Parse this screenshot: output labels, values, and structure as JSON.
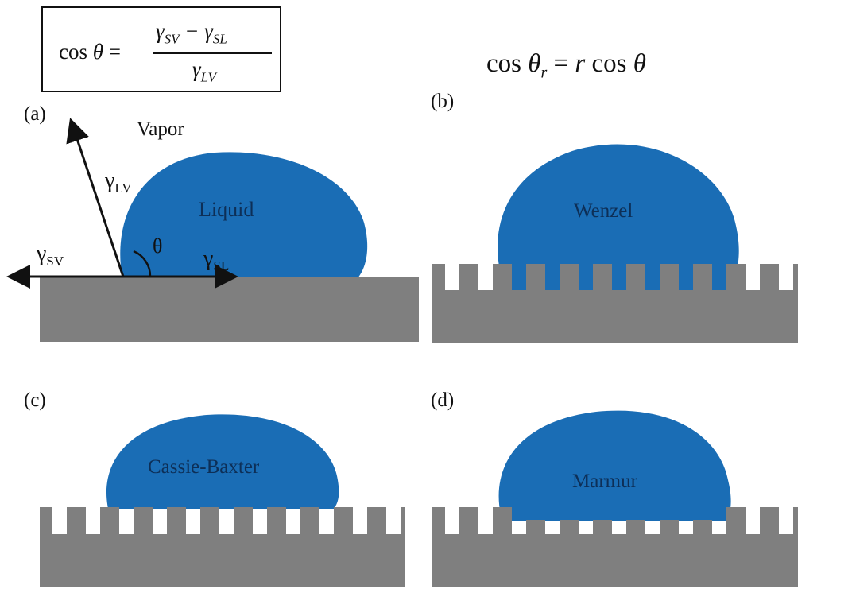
{
  "equations": {
    "young": {
      "lhs": "cos θ =",
      "numerator": "γSV − γSL",
      "denominator": "γLV"
    },
    "wenzel": {
      "text": "cos θr = r cos θ"
    }
  },
  "panels": {
    "a": {
      "label": "(a)",
      "vapor": "Vapor",
      "liquid": "Liquid",
      "gamma_lv": "γLV",
      "gamma_sv": "γSV",
      "gamma_sl": "γSL",
      "theta": "θ"
    },
    "b": {
      "label": "(b)",
      "drop": "Wenzel"
    },
    "c": {
      "label": "(c)",
      "drop": "Cassie-Baxter"
    },
    "d": {
      "label": "(d)",
      "drop": "Marmur"
    }
  },
  "colors": {
    "liquid": "#1a6db5",
    "solid": "#7f7f7f",
    "line": "#111111"
  }
}
